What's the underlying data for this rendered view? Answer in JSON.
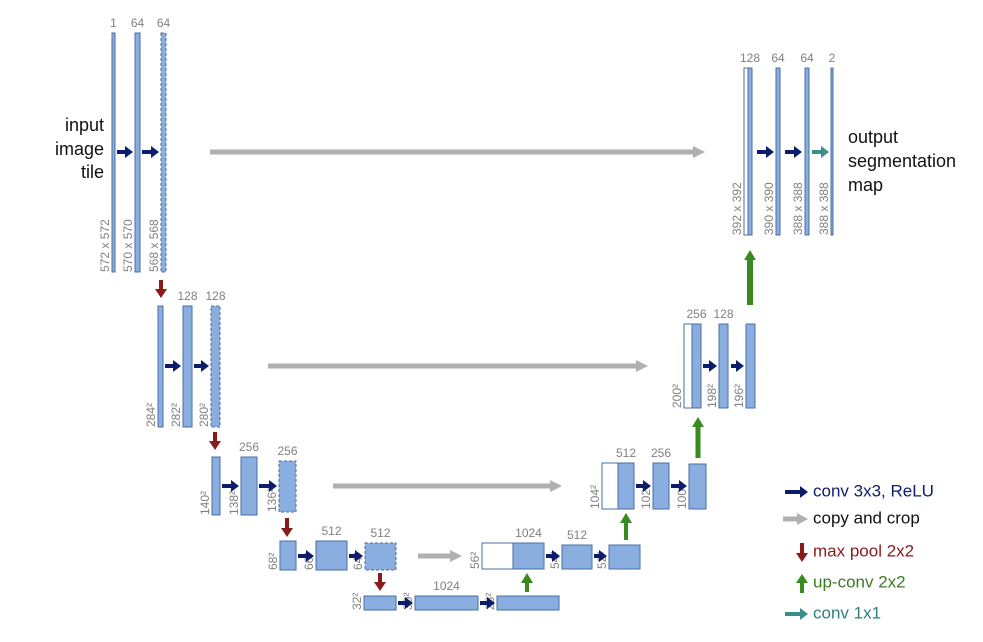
{
  "input_label": [
    "input",
    "image",
    "tile"
  ],
  "output_label": [
    "output",
    "segmentation",
    "map"
  ],
  "blocks": [
    {
      "channels": 1,
      "size": "572 x 572"
    },
    {
      "channels": 64,
      "size": "570 x 570"
    },
    {
      "channels": 64,
      "size": "568 x 568"
    },
    {
      "size": "284²"
    },
    {
      "channels": 128,
      "size": "282²"
    },
    {
      "channels": 128,
      "size": "280²"
    },
    {
      "size": "140²"
    },
    {
      "channels": 256,
      "size": "138²"
    },
    {
      "channels": 256,
      "size": "136²"
    },
    {
      "size": "68²"
    },
    {
      "channels": 512,
      "size": "66²"
    },
    {
      "channels": 512,
      "size": "64²"
    },
    {
      "size": "32²"
    },
    {
      "channels": 1024,
      "size": "30²"
    },
    {
      "size": "28²"
    },
    {
      "channels": 1024,
      "size": "56²"
    },
    {
      "channels": 512,
      "size": "54²"
    },
    {
      "size": "52²"
    },
    {
      "channels": 512,
      "size": "104²"
    },
    {
      "channels": 256,
      "size": "102²"
    },
    {
      "size": "100²"
    },
    {
      "channels": 256,
      "size": "200²"
    },
    {
      "channels": 128,
      "size": "198²"
    },
    {
      "size": "196²"
    },
    {
      "channels": 128,
      "size": "392 x 392"
    },
    {
      "channels": 64,
      "size": "390 x 390"
    },
    {
      "channels": 64,
      "size": "388 x 388"
    },
    {
      "channels": 2,
      "size": "388 x 388"
    }
  ],
  "legend": [
    "conv 3x3, ReLU",
    "copy and crop",
    "max pool 2x2",
    "up-conv 2x2",
    "conv 1x1"
  ]
}
